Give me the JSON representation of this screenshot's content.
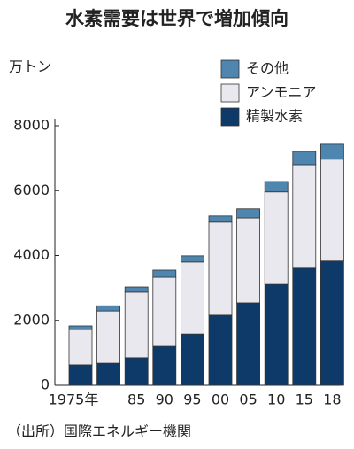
{
  "chart_data": {
    "type": "stacked_bar",
    "title": "水素需要は世界で増加傾向",
    "y_label": "万トン",
    "source": "（出所）国際エネルギー機関",
    "categories": [
      "1975年",
      null,
      "85",
      "90",
      "95",
      "00",
      "05",
      "10",
      "15",
      "18"
    ],
    "series": [
      {
        "name": "精製水素",
        "color": "#0e3a6a",
        "values": [
          630,
          680,
          850,
          1200,
          1580,
          2160,
          2540,
          3110,
          3610,
          3830
        ]
      },
      {
        "name": "アンモニア",
        "color": "#e9e8ef",
        "values": [
          1090,
          1610,
          2020,
          2130,
          2220,
          2870,
          2620,
          2850,
          3190,
          3140
        ]
      },
      {
        "name": "その他",
        "color": "#4e86b0",
        "values": [
          110,
          160,
          160,
          220,
          190,
          190,
          280,
          320,
          410,
          460
        ]
      }
    ],
    "ylim": [
      0,
      8000
    ],
    "yticks": [
      0,
      2000,
      4000,
      6000,
      8000
    ],
    "legend": "top-right"
  }
}
